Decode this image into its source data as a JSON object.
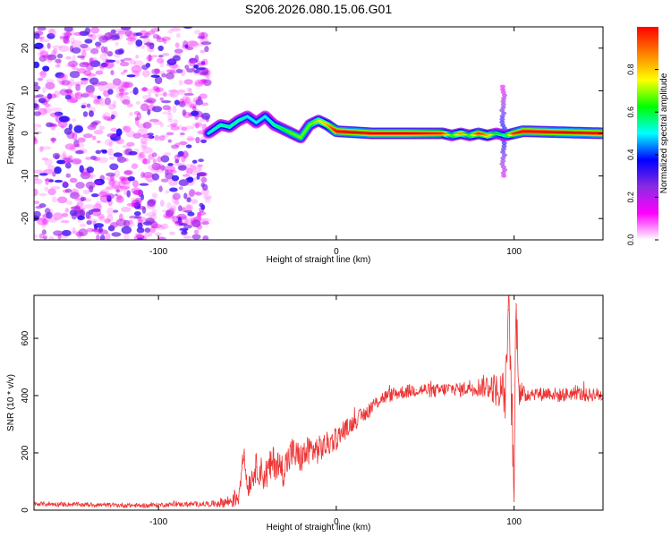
{
  "figure_title": "S206.2026.080.15.06.G01",
  "chart_data": [
    {
      "type": "heatmap",
      "title": "",
      "xlabel": "Height of straight line (km)",
      "ylabel": "Frequency (Hz)",
      "xlim": [
        -170,
        150
      ],
      "ylim": [
        -25,
        25
      ],
      "xticks": [
        -100,
        0,
        100
      ],
      "yticks": [
        -20,
        -10,
        0,
        10,
        20
      ],
      "colorbar": {
        "label": "Normalized spectral amplitude",
        "range": [
          0.0,
          1.0
        ],
        "ticks": [
          0.0,
          0.2,
          0.4,
          0.6,
          0.8
        ],
        "colors": [
          "#ffffff",
          "#ff00ff",
          "#8a2be2",
          "#0000ff",
          "#00ffff",
          "#00ff00",
          "#ffff00",
          "#ff8000",
          "#ff0000"
        ]
      },
      "noise_region": {
        "x": [
          -170,
          -72
        ],
        "y": [
          -25,
          25
        ],
        "amplitude": [
          0.0,
          0.3
        ]
      },
      "ridge": {
        "x": [
          -72,
          -65,
          -60,
          -55,
          -50,
          -45,
          -40,
          -35,
          -30,
          -25,
          -20,
          -15,
          -10,
          -5,
          0,
          20,
          40,
          60,
          65,
          70,
          75,
          80,
          85,
          90,
          95,
          100,
          105,
          150
        ],
        "y": [
          0,
          2,
          1.5,
          3,
          4,
          2.5,
          4,
          2,
          1,
          0,
          -1,
          2,
          3,
          2,
          0.5,
          0,
          0,
          0,
          -0.5,
          0,
          -0.5,
          0,
          -0.5,
          0,
          -0.5,
          0,
          0.5,
          0
        ],
        "amplitude": [
          0.45,
          0.5,
          0.5,
          0.5,
          0.45,
          0.45,
          0.45,
          0.5,
          0.55,
          0.6,
          0.6,
          0.6,
          0.65,
          0.75,
          0.9,
          0.9,
          0.9,
          0.85,
          0.55,
          0.75,
          0.55,
          0.85,
          0.75,
          0.55,
          0.5,
          0.85,
          0.9,
          0.9
        ]
      },
      "spike": {
        "x": 94,
        "y": [
          -10,
          11
        ],
        "amplitude": 0.3
      }
    },
    {
      "type": "line",
      "title": "",
      "xlabel": "Height of straight line (km)",
      "ylabel": "SNR (10 * v/v)",
      "xlim": [
        -170,
        150
      ],
      "ylim": [
        0,
        750
      ],
      "xticks": [
        -100,
        0,
        100
      ],
      "yticks": [
        0,
        200,
        400,
        600
      ],
      "grid": false,
      "series": [
        {
          "color": "#ee3333",
          "x": [
            -170,
            -150,
            -130,
            -110,
            -90,
            -70,
            -60,
            -55,
            -52,
            -50,
            -45,
            -40,
            -35,
            -30,
            -25,
            -20,
            -15,
            -10,
            -5,
            0,
            5,
            10,
            15,
            20,
            25,
            30,
            35,
            40,
            45,
            50,
            55,
            60,
            65,
            70,
            75,
            80,
            85,
            90,
            95,
            97,
            99,
            100,
            101,
            103,
            105,
            110,
            115,
            120,
            125,
            130,
            135,
            140,
            145,
            150
          ],
          "y": [
            22,
            20,
            18,
            16,
            20,
            22,
            30,
            50,
            200,
            80,
            150,
            120,
            170,
            140,
            200,
            180,
            210,
            210,
            230,
            250,
            280,
            310,
            330,
            360,
            390,
            400,
            410,
            415,
            420,
            420,
            415,
            420,
            425,
            420,
            430,
            430,
            435,
            420,
            400,
            700,
            300,
            30,
            720,
            420,
            400,
            410,
            405,
            410,
            400,
            405,
            410,
            400,
            405,
            400
          ],
          "noise": [
            8,
            8,
            8,
            8,
            8,
            10,
            25,
            40,
            30,
            40,
            50,
            60,
            60,
            60,
            60,
            55,
            55,
            50,
            45,
            40,
            35,
            30,
            30,
            28,
            25,
            25,
            25,
            25,
            25,
            25,
            25,
            25,
            25,
            25,
            30,
            35,
            45,
            60,
            90,
            80,
            120,
            40,
            100,
            60,
            35,
            25,
            25,
            25,
            25,
            25,
            25,
            25,
            25,
            25
          ]
        }
      ]
    }
  ]
}
